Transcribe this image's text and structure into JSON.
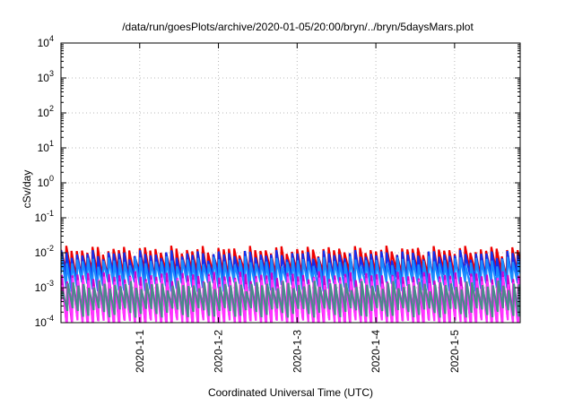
{
  "chart_data": {
    "type": "line",
    "title": "/data/run/goesPlots/archive/2020-01-05/20:00/bryn/../bryn/5daysMars.plot",
    "xlabel": "Coordinated Universal Time (UTC)",
    "ylabel": "cSv/day",
    "y_scale": "log",
    "ylim": [
      0.0001,
      10000
    ],
    "y_ticks": [
      {
        "mantissa": "10",
        "exp": "4"
      },
      {
        "mantissa": "10",
        "exp": "3"
      },
      {
        "mantissa": "10",
        "exp": "2"
      },
      {
        "mantissa": "10",
        "exp": "1"
      },
      {
        "mantissa": "10",
        "exp": "0"
      },
      {
        "mantissa": "10",
        "exp": "-1"
      },
      {
        "mantissa": "10",
        "exp": "-2"
      },
      {
        "mantissa": "10",
        "exp": "-3"
      },
      {
        "mantissa": "10",
        "exp": "-4"
      }
    ],
    "xlim": [
      "2019-12-31T00:00",
      "2020-01-05T20:00"
    ],
    "x_ticks": [
      "2020-1-1",
      "2020-1-2",
      "2020-1-3",
      "2020-1-4",
      "2020-1-5"
    ],
    "x_tick_dates": [
      "2020-01-01T00:00",
      "2020-01-02T00:00",
      "2020-01-03T00:00",
      "2020-01-04T00:00",
      "2020-01-05T00:00"
    ],
    "grid": true,
    "sawtooth_period_hours": 1.6,
    "series": [
      {
        "color": "#ee0000",
        "peak": 0.012,
        "trough": 0.0025,
        "phase": 0.0
      },
      {
        "color": "#1030ee",
        "peak": 0.009,
        "trough": 0.0018,
        "phase": 0.05
      },
      {
        "color": "#1a8cff",
        "peak": 0.006,
        "trough": 0.0011,
        "phase": 0.1
      },
      {
        "color": "#d000d0",
        "peak": 0.0022,
        "trough": 0.00012,
        "phase": 0.15
      },
      {
        "color": "#ff33ff",
        "peak": 0.0016,
        "trough": 9e-05,
        "phase": 0.22
      },
      {
        "color": "#4a8a8a",
        "peak": 0.0012,
        "trough": 0.0002,
        "phase": 0.3
      }
    ]
  }
}
